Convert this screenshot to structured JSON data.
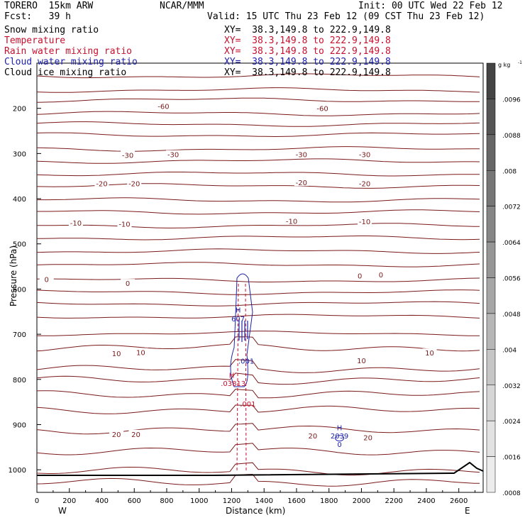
{
  "header": {
    "model": "TORERO  15km ARW",
    "org": "NCAR/MMM",
    "init": "Init: 00 UTC Wed 22 Feb 12",
    "fcst": "Fcst:   39 h",
    "valid": "Valid: 15 UTC Thu 23 Feb 12 (09 CST Thu 23 Feb 12)"
  },
  "legend": [
    {
      "label": "Snow mixing ratio",
      "color": "#000000",
      "xy": "XY=  38.3,149.8 to 222.9,149.8",
      "xy_color": "#000000"
    },
    {
      "label": "Temperature",
      "color": "#c8102e",
      "xy": "XY=  38.3,149.8 to 222.9,149.8",
      "xy_color": "#c8102e"
    },
    {
      "label": "Rain water mixing ratio",
      "color": "#c8102e",
      "xy": "XY=  38.3,149.8 to 222.9,149.8",
      "xy_color": "#c8102e"
    },
    {
      "label": "Cloud water mixing ratio",
      "color": "#1e22aa",
      "xy": "XY=  38.3,149.8 to 222.9,149.8",
      "xy_color": "#1e22aa"
    },
    {
      "label": "Cloud ice mixing ratio",
      "color": "#000000",
      "xy": "XY=  38.3,149.8 to 222.9,149.8",
      "xy_color": "#000000"
    }
  ],
  "chart_data": {
    "type": "line",
    "xlabel": "Distance (km)",
    "ylabel": "Pressure (hPa)",
    "xlim": [
      0,
      2750
    ],
    "ylim": [
      1050,
      100
    ],
    "x_ticks": [
      0,
      200,
      400,
      600,
      800,
      1000,
      1200,
      1400,
      1600,
      1800,
      2000,
      2200,
      2400,
      2600
    ],
    "y_ticks": [
      200,
      300,
      400,
      500,
      600,
      700,
      800,
      900,
      1000
    ],
    "end_labels": [
      "W",
      "E"
    ],
    "colorbar": {
      "unit": "g kg",
      "unit_exp": "-1",
      "ticks": [
        ".0096",
        ".0088",
        ".008",
        ".0072",
        ".0064",
        ".0056",
        ".0048",
        ".004",
        ".0032",
        ".0024",
        ".0016",
        ".0008"
      ],
      "colors": [
        "#444444",
        "#555555",
        "#666666",
        "#767676",
        "#868686",
        "#969696",
        "#a6a6a6",
        "#b6b6b6",
        "#c6c6c6",
        "#d6d6d6",
        "#e2e2e2",
        "#ececec"
      ]
    },
    "temperature_labels": [
      {
        "text": "-60",
        "x": 780,
        "p": 195
      },
      {
        "text": "-60",
        "x": 1760,
        "p": 200
      },
      {
        "text": "-30",
        "x": 560,
        "p": 303
      },
      {
        "text": "-30",
        "x": 840,
        "p": 302
      },
      {
        "text": "-30",
        "x": 1630,
        "p": 302
      },
      {
        "text": "-30",
        "x": 2020,
        "p": 302
      },
      {
        "text": "-20",
        "x": 400,
        "p": 366
      },
      {
        "text": "-20",
        "x": 600,
        "p": 366
      },
      {
        "text": "-20",
        "x": 1630,
        "p": 364
      },
      {
        "text": "-20",
        "x": 2020,
        "p": 366
      },
      {
        "text": "-10",
        "x": 240,
        "p": 453
      },
      {
        "text": "-10",
        "x": 540,
        "p": 456
      },
      {
        "text": "-10",
        "x": 1570,
        "p": 449
      },
      {
        "text": "-10",
        "x": 2020,
        "p": 450
      },
      {
        "text": "0",
        "x": 60,
        "p": 578
      },
      {
        "text": "0",
        "x": 560,
        "p": 587
      },
      {
        "text": "0",
        "x": 1990,
        "p": 570
      },
      {
        "text": "0",
        "x": 2120,
        "p": 568
      },
      {
        "text": "10",
        "x": 490,
        "p": 742
      },
      {
        "text": "10",
        "x": 640,
        "p": 740
      },
      {
        "text": "10",
        "x": 2000,
        "p": 758
      },
      {
        "text": "10",
        "x": 2420,
        "p": 741
      },
      {
        "text": "20",
        "x": 490,
        "p": 921
      },
      {
        "text": "20",
        "x": 610,
        "p": 921
      },
      {
        "text": "20",
        "x": 1700,
        "p": 924
      },
      {
        "text": "20",
        "x": 2040,
        "p": 928
      }
    ],
    "cloud_labels": [
      {
        "text": "H",
        "x": 1240,
        "p": 646,
        "color": "#1e22aa"
      },
      {
        "text": "607",
        "x": 1240,
        "p": 665,
        "color": "#1e22aa"
      },
      {
        "text": ".001",
        "x": 1290,
        "p": 759,
        "color": "#1e22aa"
      },
      {
        "text": "H",
        "x": 1865,
        "p": 906,
        "color": "#1e22aa"
      },
      {
        "text": "2039",
        "x": 1865,
        "p": 924,
        "color": "#1e22aa"
      },
      {
        "text": "0",
        "x": 1865,
        "p": 943,
        "color": "#1e22aa"
      }
    ],
    "rain_labels": [
      {
        "text": "H",
        "x": 1200,
        "p": 790,
        "color": "#c8102e"
      },
      {
        "text": ".03813",
        "x": 1210,
        "p": 808,
        "color": "#c8102e"
      },
      {
        "text": ".001",
        "x": 1300,
        "p": 854,
        "color": "#c8102e"
      }
    ]
  }
}
